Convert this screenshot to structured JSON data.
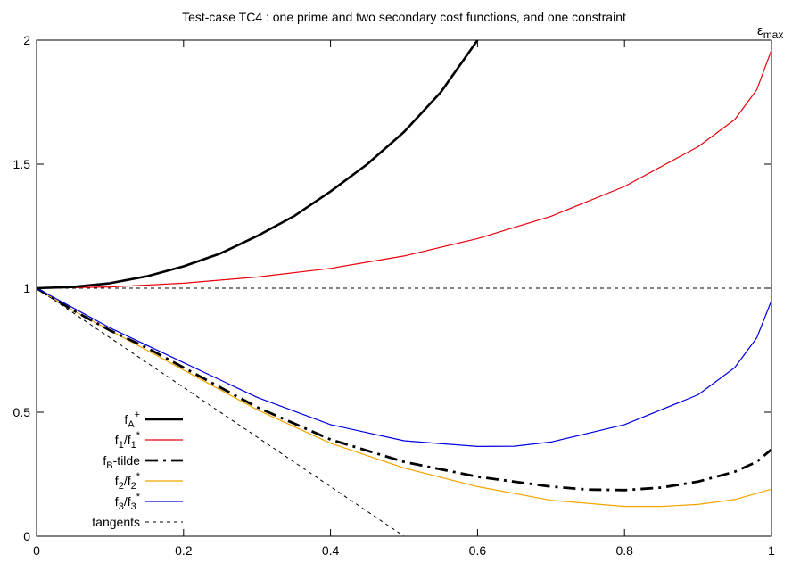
{
  "chart_data": {
    "type": "line",
    "title": "Test-case TC4 : one prime and two secondary cost functions, and one constraint",
    "xlabel": "",
    "ylabel": "",
    "xlim": [
      0,
      1
    ],
    "ylim": [
      0,
      2
    ],
    "x_ticks": [
      0,
      0.2,
      0.4,
      0.6,
      0.8,
      1
    ],
    "y_ticks": [
      0,
      0.5,
      1,
      1.5,
      2
    ],
    "x_tick_labels": [
      "0",
      "0.2",
      "0.4",
      "0.6",
      "0.8",
      "1"
    ],
    "y_tick_labels": [
      "0",
      "0.5",
      "1",
      "1.5",
      "2"
    ],
    "annotation": {
      "symbol": "ε",
      "subscript": "max"
    },
    "grid": false,
    "legend_position": "bottom-left",
    "series": [
      {
        "key": "fA",
        "legend": {
          "base": "f",
          "sub": "A",
          "sup": "+",
          "rest": ""
        },
        "color": "#000000",
        "style": "solid-thick",
        "x": [
          0,
          0.05,
          0.1,
          0.15,
          0.2,
          0.25,
          0.3,
          0.35,
          0.4,
          0.45,
          0.5,
          0.55,
          0.6
        ],
        "y": [
          1.0,
          1.005,
          1.02,
          1.048,
          1.088,
          1.14,
          1.21,
          1.29,
          1.39,
          1.5,
          1.63,
          1.79,
          2.0
        ]
      },
      {
        "key": "f1",
        "legend": {
          "base": "f",
          "sub": "1",
          "sup": "",
          "rest": "/f",
          "sub2": "1",
          "sup2": "*"
        },
        "color": "#e8000b",
        "style": "solid",
        "x": [
          0,
          0.1,
          0.2,
          0.3,
          0.4,
          0.5,
          0.6,
          0.7,
          0.8,
          0.9,
          0.95,
          0.98,
          1.0
        ],
        "y": [
          1.0,
          1.005,
          1.02,
          1.045,
          1.08,
          1.13,
          1.2,
          1.29,
          1.41,
          1.57,
          1.68,
          1.8,
          1.96
        ]
      },
      {
        "key": "fB",
        "legend": {
          "base": "f",
          "sub": "B",
          "sup": "",
          "rest": "-tilde"
        },
        "color": "#000000",
        "style": "dashdot-thick",
        "x": [
          0,
          0.05,
          0.1,
          0.15,
          0.2,
          0.3,
          0.4,
          0.5,
          0.6,
          0.7,
          0.75,
          0.8,
          0.85,
          0.9,
          0.95,
          0.98,
          1.0
        ],
        "y": [
          1.0,
          0.91,
          0.83,
          0.76,
          0.68,
          0.52,
          0.39,
          0.3,
          0.24,
          0.2,
          0.188,
          0.186,
          0.196,
          0.22,
          0.26,
          0.3,
          0.35
        ]
      },
      {
        "key": "f2",
        "legend": {
          "base": "f",
          "sub": "2",
          "sup": "",
          "rest": "/f",
          "sub2": "2",
          "sup2": "*"
        },
        "color": "#f5a300",
        "style": "solid",
        "x": [
          0,
          0.05,
          0.1,
          0.15,
          0.2,
          0.3,
          0.4,
          0.5,
          0.6,
          0.7,
          0.8,
          0.85,
          0.9,
          0.95,
          1.0
        ],
        "y": [
          1.0,
          0.91,
          0.83,
          0.75,
          0.67,
          0.51,
          0.375,
          0.275,
          0.2,
          0.145,
          0.12,
          0.12,
          0.128,
          0.148,
          0.19
        ]
      },
      {
        "key": "f3",
        "legend": {
          "base": "f",
          "sub": "3",
          "sup": "",
          "rest": "/f",
          "sub2": "3",
          "sup2": "*"
        },
        "color": "#0000e0",
        "style": "solid",
        "x": [
          0,
          0.05,
          0.1,
          0.15,
          0.2,
          0.3,
          0.4,
          0.5,
          0.6,
          0.65,
          0.7,
          0.8,
          0.9,
          0.95,
          0.98,
          1.0
        ],
        "y": [
          1.0,
          0.92,
          0.84,
          0.77,
          0.7,
          0.56,
          0.45,
          0.385,
          0.362,
          0.363,
          0.38,
          0.45,
          0.57,
          0.68,
          0.8,
          0.95
        ]
      },
      {
        "key": "tangents",
        "legend": {
          "base": "tangents",
          "sub": "",
          "sup": "",
          "rest": ""
        },
        "color": "#000000",
        "style": "dashed",
        "segments": [
          {
            "x": [
              0,
              1
            ],
            "y": [
              1,
              1
            ]
          },
          {
            "x": [
              0,
              0.5
            ],
            "y": [
              1,
              0
            ]
          }
        ]
      }
    ]
  }
}
